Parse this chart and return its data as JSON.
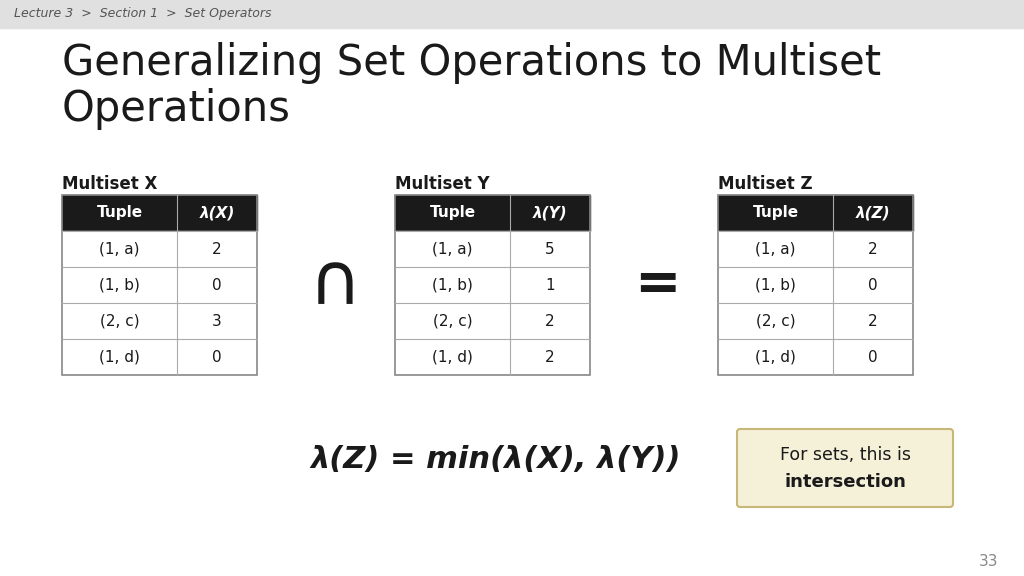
{
  "title_line1": "Generalizing Set Operations to Multiset",
  "title_line2": "Operations",
  "breadcrumb": "Lecture 3  >  Section 1  >  Set Operators",
  "slide_number": "33",
  "background_color": "#ffffff",
  "header_bg": "#e0e0e0",
  "table_header_bg": "#1a1a1a",
  "table_header_fg": "#ffffff",
  "table_border": "#888888",
  "table_row_bg": "#ffffff",
  "table_line_color": "#aaaaaa",
  "multiset_x_label": "Multiset X",
  "multiset_y_label": "Multiset Y",
  "multiset_z_label": "Multiset Z",
  "table_x_headers": [
    "Tuple",
    "λ(X)"
  ],
  "table_x_rows": [
    [
      "(1, a)",
      "2"
    ],
    [
      "(1, b)",
      "0"
    ],
    [
      "(2, c)",
      "3"
    ],
    [
      "(1, d)",
      "0"
    ]
  ],
  "table_y_headers": [
    "Tuple",
    "λ(Y)"
  ],
  "table_y_rows": [
    [
      "(1, a)",
      "5"
    ],
    [
      "(1, b)",
      "1"
    ],
    [
      "(2, c)",
      "2"
    ],
    [
      "(1, d)",
      "2"
    ]
  ],
  "table_z_headers": [
    "Tuple",
    "λ(Z)"
  ],
  "table_z_rows": [
    [
      "(1, a)",
      "2"
    ],
    [
      "(1, b)",
      "0"
    ],
    [
      "(2, c)",
      "2"
    ],
    [
      "(1, d)",
      "0"
    ]
  ],
  "formula": "λ(Z) = min(λ(X), λ(Y))",
  "note_line1": "For sets, this is",
  "note_line2": "intersection",
  "note_bg": "#f5f0d8",
  "note_border": "#c8b878"
}
